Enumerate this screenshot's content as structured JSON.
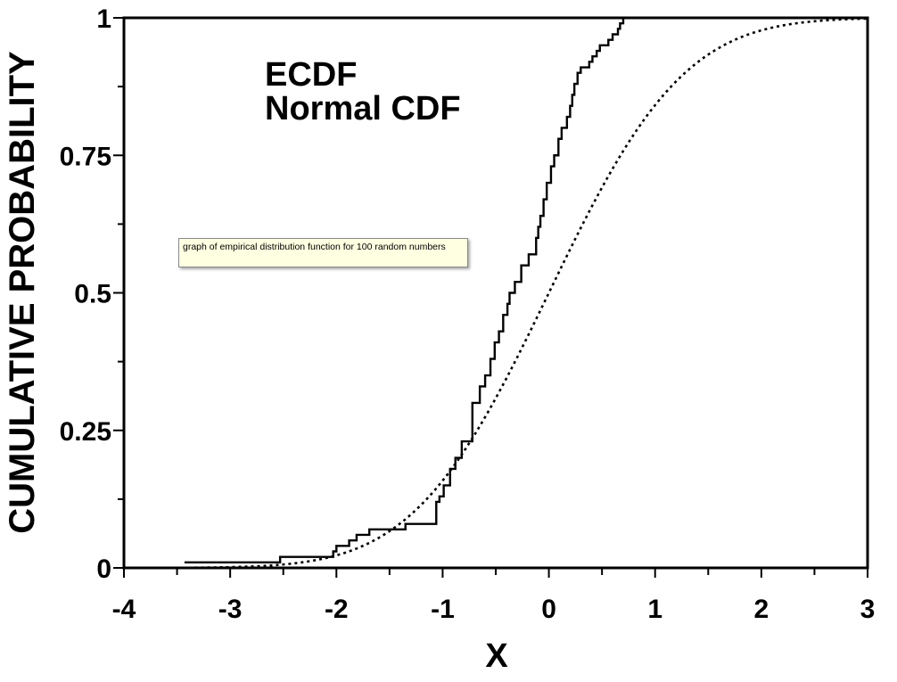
{
  "tooltip": {
    "text": "graph of empirical distribution function for 100 random numbers"
  },
  "chart_data": {
    "type": "line",
    "title": "",
    "xlabel": "X",
    "ylabel": "CUMULATIVE PROBABILITY",
    "xlim": [
      -4,
      3
    ],
    "ylim": [
      0,
      1
    ],
    "x_ticks": [
      -4,
      -3,
      -2,
      -1,
      0,
      1,
      2,
      3
    ],
    "x_tick_labels": [
      "-4",
      "-3",
      "-2",
      "-1",
      "0",
      "1",
      "2",
      "3"
    ],
    "y_ticks": [
      0,
      0.25,
      0.5,
      0.75,
      1
    ],
    "y_tick_labels": [
      "0",
      "0.25",
      "0.5",
      "0.75",
      "1"
    ],
    "grid": false,
    "legend_placement": "top-left",
    "series": [
      {
        "name": "ECDF",
        "style": "step-solid",
        "x": [
          -3.43,
          -2.53,
          -2.03,
          -2.0,
          -1.88,
          -1.81,
          -1.69,
          -1.35,
          -1.06,
          -1.03,
          -0.99,
          -0.93,
          -0.88,
          -0.82,
          -0.72,
          -0.65,
          -0.6,
          -0.55,
          -0.51,
          -0.47,
          -0.43,
          -0.39,
          -0.37,
          -0.32,
          -0.26,
          -0.19,
          -0.12,
          -0.1,
          -0.08,
          -0.05,
          -0.02,
          0.02,
          0.05,
          0.09,
          0.12,
          0.17,
          0.2,
          0.22,
          0.24,
          0.27,
          0.3,
          0.38,
          0.41,
          0.45,
          0.48,
          0.56,
          0.6,
          0.65,
          0.67,
          0.7,
          0.75,
          0.8,
          0.82,
          0.86,
          1.02,
          1.05,
          1.18,
          1.32,
          1.47,
          1.52,
          1.55,
          1.72,
          2.0,
          3.0
        ],
        "y": [
          0.01,
          0.02,
          0.03,
          0.04,
          0.05,
          0.06,
          0.07,
          0.08,
          0.12,
          0.13,
          0.15,
          0.18,
          0.2,
          0.23,
          0.3,
          0.33,
          0.35,
          0.38,
          0.41,
          0.43,
          0.46,
          0.48,
          0.5,
          0.52,
          0.55,
          0.57,
          0.6,
          0.62,
          0.64,
          0.67,
          0.7,
          0.73,
          0.75,
          0.78,
          0.8,
          0.82,
          0.84,
          0.86,
          0.88,
          0.9,
          0.91,
          0.92,
          0.93,
          0.94,
          0.95,
          0.96,
          0.97,
          0.98,
          0.99,
          1.0,
          1.0,
          1.0,
          1.0,
          1.0,
          1.0,
          1.0,
          1.0,
          1.0,
          1.0,
          1.0,
          1.0,
          1.0,
          1.0,
          1.0
        ]
      },
      {
        "name": "Normal CDF",
        "style": "dotted",
        "function": "standard normal cumulative distribution",
        "x_range": [
          -3.45,
          3.0
        ]
      }
    ]
  }
}
